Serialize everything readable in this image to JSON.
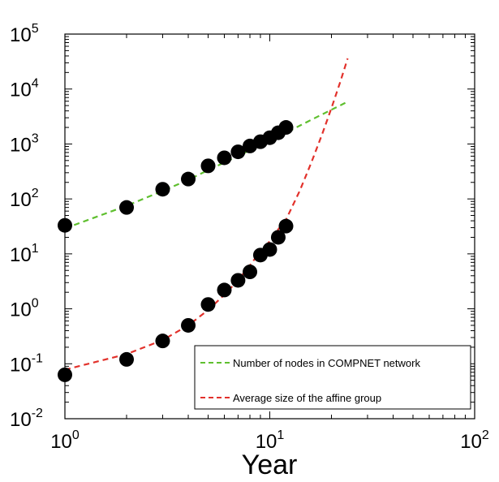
{
  "chart_data": {
    "type": "scatter",
    "xlabel": "Year",
    "ylabel": "",
    "x_scale": "log",
    "y_scale": "log",
    "xlim": [
      1,
      100
    ],
    "ylim": [
      0.01,
      100000
    ],
    "grid": false,
    "legend_position": "bottom-right",
    "x_ticks": [
      {
        "value": 1,
        "base": "10",
        "exp": "0"
      },
      {
        "value": 10,
        "base": "10",
        "exp": "1"
      },
      {
        "value": 100,
        "base": "10",
        "exp": "2"
      }
    ],
    "y_ticks": [
      {
        "value": 0.01,
        "base": "10",
        "exp": "-2"
      },
      {
        "value": 0.1,
        "base": "10",
        "exp": "-1"
      },
      {
        "value": 1,
        "base": "10",
        "exp": "0"
      },
      {
        "value": 10,
        "base": "10",
        "exp": "1"
      },
      {
        "value": 100,
        "base": "10",
        "exp": "2"
      },
      {
        "value": 1000,
        "base": "10",
        "exp": "3"
      },
      {
        "value": 10000,
        "base": "10",
        "exp": "4"
      },
      {
        "value": 100000,
        "base": "10",
        "exp": "5"
      }
    ],
    "series": [
      {
        "name": "Number of nodes in COMPNET network",
        "kind": "points",
        "color": "#000000",
        "x": [
          1,
          2,
          3,
          4,
          5,
          6,
          7,
          8,
          9,
          10,
          11,
          12
        ],
        "y": [
          33,
          70,
          150,
          230,
          400,
          560,
          720,
          920,
          1100,
          1300,
          1600,
          2000
        ]
      },
      {
        "name": "Average size of the affine group",
        "kind": "points",
        "color": "#000000",
        "x": [
          1,
          2,
          3,
          4,
          5,
          6,
          7,
          8,
          9,
          10,
          11,
          12
        ],
        "y": [
          0.063,
          0.12,
          0.26,
          0.5,
          1.2,
          2.2,
          3.3,
          4.7,
          9.5,
          12,
          20,
          32
        ]
      },
      {
        "name": "Number of nodes in COMPNET network",
        "kind": "fit",
        "color": "#5fbf2f",
        "x": [
          1,
          2,
          3,
          4,
          5,
          6,
          7,
          8,
          9,
          10,
          11,
          12,
          14,
          16,
          18,
          20,
          22,
          24
        ],
        "y": [
          29,
          75,
          140,
          222,
          335,
          460,
          605,
          770,
          950,
          1150,
          1370,
          1600,
          2150,
          2770,
          3450,
          4200,
          5000,
          5900
        ]
      },
      {
        "name": "Average size of the affine group",
        "kind": "fit",
        "color": "#e2312b",
        "x": [
          1,
          2,
          3,
          4,
          5,
          6,
          7,
          8,
          9,
          10,
          11,
          12,
          14,
          16,
          18,
          20,
          22,
          24
        ],
        "y": [
          0.078,
          0.15,
          0.27,
          0.5,
          0.95,
          1.8,
          3.3,
          6.2,
          11,
          17,
          28,
          42,
          140,
          470,
          1500,
          4500,
          13000,
          36000
        ]
      }
    ],
    "legend": [
      {
        "label": "Number of nodes in COMPNET network",
        "color": "#5fbf2f"
      },
      {
        "label": "Average size of the affine group",
        "color": "#e2312b"
      }
    ]
  }
}
